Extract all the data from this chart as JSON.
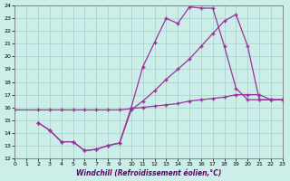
{
  "xlabel": "Windchill (Refroidissement éolien,°C)",
  "xlim": [
    0,
    23
  ],
  "ylim": [
    12,
    24
  ],
  "xticks": [
    0,
    1,
    2,
    3,
    4,
    5,
    6,
    7,
    8,
    9,
    10,
    11,
    12,
    13,
    14,
    15,
    16,
    17,
    18,
    19,
    20,
    21,
    22,
    23
  ],
  "yticks": [
    12,
    13,
    14,
    15,
    16,
    17,
    18,
    19,
    20,
    21,
    22,
    23,
    24
  ],
  "bg_color": "#cceee8",
  "grid_color": "#aacccc",
  "line_color": "#993399",
  "line1_x": [
    0,
    2,
    3,
    4,
    5,
    6,
    7,
    8,
    9,
    10,
    11,
    12,
    13,
    14,
    15,
    16,
    17,
    18,
    19,
    20,
    21,
    22,
    23
  ],
  "line1_y": [
    15.8,
    15.8,
    15.8,
    15.8,
    15.8,
    15.8,
    15.8,
    15.8,
    15.8,
    15.9,
    16.0,
    16.1,
    16.2,
    16.3,
    16.5,
    16.6,
    16.7,
    16.8,
    17.0,
    17.0,
    17.0,
    16.6,
    16.6
  ],
  "line2_x": [
    2,
    3,
    4,
    5,
    6,
    7,
    8,
    9,
    10,
    11,
    12,
    13,
    14,
    15,
    16,
    17,
    18,
    19,
    20,
    21,
    22,
    23
  ],
  "line2_y": [
    14.8,
    14.2,
    13.3,
    13.3,
    12.6,
    12.7,
    13.0,
    13.2,
    16.0,
    19.2,
    21.1,
    23.0,
    22.6,
    23.9,
    23.8,
    23.8,
    20.8,
    17.5,
    16.6,
    16.6,
    16.6,
    16.6
  ],
  "line3_x": [
    2,
    3,
    4,
    5,
    6,
    7,
    8,
    9,
    10,
    11,
    12,
    13,
    14,
    15,
    16,
    17,
    18,
    19,
    20,
    21,
    22,
    23
  ],
  "line3_y": [
    14.8,
    14.2,
    13.3,
    13.3,
    12.6,
    12.7,
    13.0,
    13.2,
    15.8,
    16.5,
    17.3,
    18.2,
    19.0,
    19.8,
    20.8,
    21.8,
    22.8,
    23.3,
    20.8,
    16.6,
    16.6,
    16.6
  ],
  "marker": "+"
}
